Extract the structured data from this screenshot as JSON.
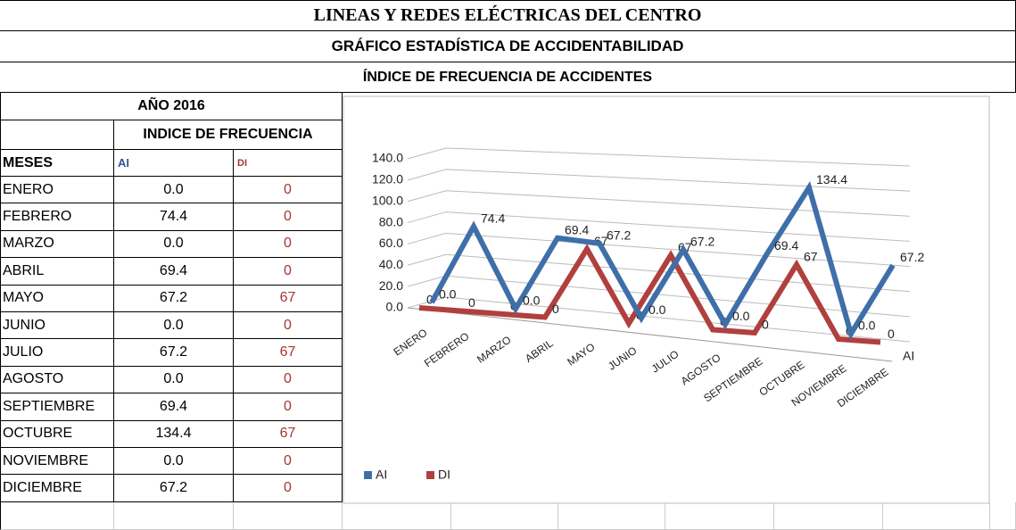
{
  "header": {
    "title": "LINEAS Y REDES ELÉCTRICAS DEL CENTRO",
    "subtitle": "GRÁFICO  ESTADÍSTICA DE ACCIDENTABILIDAD",
    "section": "ÍNDICE DE FRECUENCIA DE ACCIDENTES"
  },
  "table": {
    "year": "AÑO 2016",
    "group": "INDICE DE FRECUENCIA",
    "month_header": "MESES"
  },
  "chart_data": {
    "type": "line",
    "categories": [
      "ENERO",
      "FEBRERO",
      "MARZO",
      "ABRIL",
      "MAYO",
      "JUNIO",
      "JULIO",
      "AGOSTO",
      "SEPTIEMBRE",
      "OCTUBRE",
      "NOVIEMBRE",
      "DICIEMBRE"
    ],
    "series": [
      {
        "name": "AI",
        "color": "#3f6fa8",
        "values": [
          0,
          74.4,
          0,
          69.4,
          67.2,
          0,
          67.2,
          0,
          69.4,
          134.4,
          0,
          67.2
        ],
        "value_labels": [
          "0.0",
          "74.4",
          "0.0",
          "69.4",
          "67.2",
          "0.0",
          "67.2",
          "0.0",
          "69.4",
          "134.4",
          "0.0",
          "67.2"
        ]
      },
      {
        "name": "DI",
        "color": "#b0403d",
        "values": [
          0,
          0,
          0,
          0,
          67,
          0,
          67,
          0,
          0,
          67,
          0,
          0
        ]
      }
    ],
    "ylim": [
      0,
      140
    ],
    "yticks": [
      {
        "value": 0,
        "label": "0.0"
      },
      {
        "value": 20,
        "label": "20.0"
      },
      {
        "value": 40,
        "label": "40.0"
      },
      {
        "value": 60,
        "label": "60.0"
      },
      {
        "value": 80,
        "label": "80.0"
      },
      {
        "value": 100,
        "label": "100.0"
      },
      {
        "value": 120,
        "label": "120.0"
      },
      {
        "value": 140,
        "label": "140.0"
      }
    ],
    "grid": true,
    "legend": "bottom-left"
  }
}
